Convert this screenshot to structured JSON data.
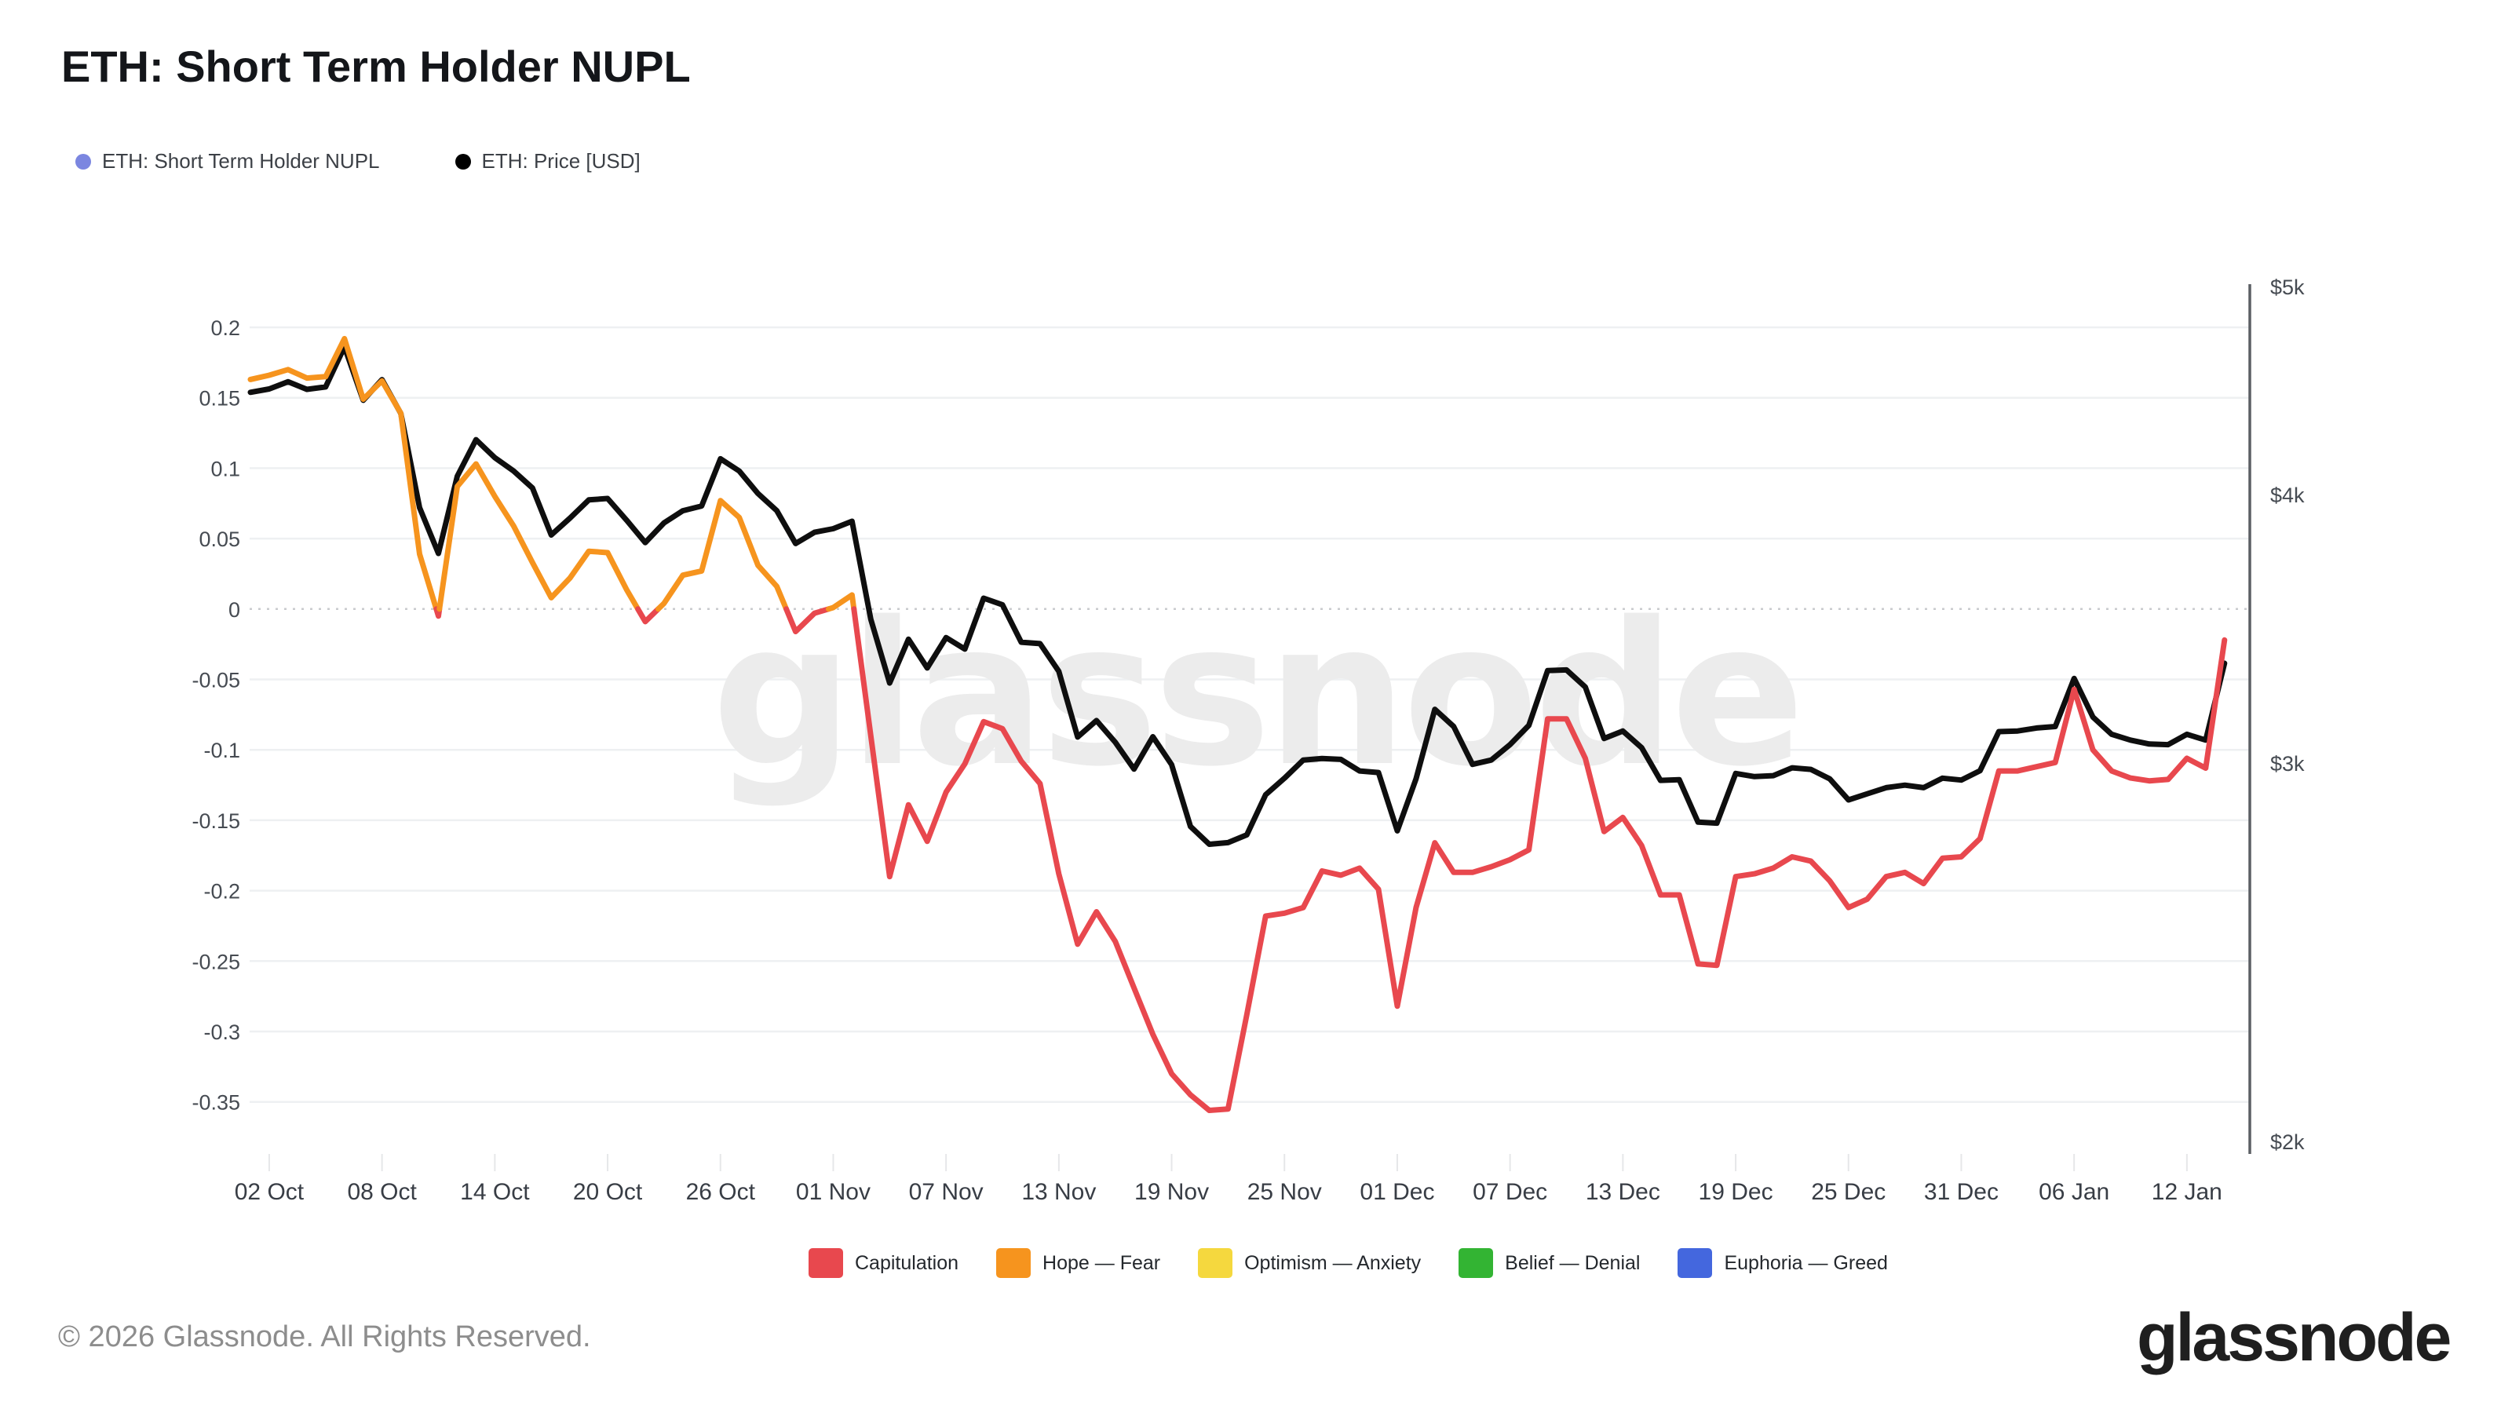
{
  "header": {
    "title": "ETH: Short Term Holder NUPL"
  },
  "top_legend": [
    {
      "label": "ETH: Short Term Holder NUPL",
      "color": "#7b86e0"
    },
    {
      "label": "ETH: Price [USD]",
      "color": "#000000"
    }
  ],
  "watermark": "glassnode",
  "bottom_legend": [
    {
      "label": "Capitulation",
      "color": "#e8484e"
    },
    {
      "label": "Hope — Fear",
      "color": "#f6941e"
    },
    {
      "label": "Optimism — Anxiety",
      "color": "#f5d83e"
    },
    {
      "label": "Belief — Denial",
      "color": "#33b433"
    },
    {
      "label": "Euphoria — Greed",
      "color": "#4467de"
    }
  ],
  "footer": {
    "copyright": "© 2026 Glassnode. All Rights Reserved.",
    "logo": "glassnode"
  },
  "chart_data": {
    "type": "line",
    "title": "ETH: Short Term Holder NUPL",
    "start_date": "2025-10-01",
    "end_date": "2026-01-14",
    "interval_days": 1,
    "grid": "horizontal",
    "x_ticks": {
      "day_index": [
        1,
        7,
        13,
        19,
        25,
        31,
        37,
        43,
        49,
        55,
        61,
        67,
        73,
        79,
        85,
        91,
        97,
        103
      ],
      "labels": [
        "02 Oct",
        "08 Oct",
        "14 Oct",
        "20 Oct",
        "26 Oct",
        "01 Nov",
        "07 Nov",
        "13 Nov",
        "19 Nov",
        "25 Nov",
        "01 Dec",
        "07 Dec",
        "13 Dec",
        "19 Dec",
        "25 Dec",
        "31 Dec",
        "06 Jan",
        "12 Jan"
      ]
    },
    "left_axis": {
      "name": "NUPL",
      "tick_values": [
        0.2,
        0.15,
        0.1,
        0.05,
        0,
        -0.05,
        -0.1,
        -0.15,
        -0.2,
        -0.25,
        -0.3,
        -0.35
      ],
      "zero_line_style": "dotted"
    },
    "right_axis": {
      "name": "ETH: Price [USD]",
      "scale": "log",
      "tick_labels": [
        "$5k",
        "$4k",
        "$3k",
        "$2k"
      ],
      "tick_values": [
        5000,
        4000,
        3000,
        2000
      ]
    },
    "series": [
      {
        "name": "ETH: Short Term Holder NUPL",
        "axis": "left",
        "color_bands": [
          {
            "range": [
              -1,
              0
            ],
            "label": "Capitulation",
            "color": "#e8484e"
          },
          {
            "range": [
              0,
              0.25
            ],
            "label": "Hope — Fear",
            "color": "#f6941e"
          },
          {
            "range": [
              0.25,
              0.5
            ],
            "label": "Optimism — Anxiety",
            "color": "#f5d83e"
          },
          {
            "range": [
              0.5,
              0.75
            ],
            "label": "Belief — Denial",
            "color": "#33b433"
          },
          {
            "range": [
              0.75,
              1
            ],
            "label": "Euphoria — Greed",
            "color": "#4467de"
          }
        ],
        "values": [
          0.163,
          0.166,
          0.17,
          0.164,
          0.165,
          0.192,
          0.149,
          0.162,
          0.139,
          0.039,
          -0.005,
          0.087,
          0.103,
          0.08,
          0.059,
          0.033,
          0.008,
          0.022,
          0.041,
          0.04,
          0.014,
          -0.009,
          0.004,
          0.024,
          0.027,
          0.077,
          0.065,
          0.031,
          0.016,
          -0.016,
          -0.003,
          0.001,
          0.01,
          -0.09,
          -0.19,
          -0.139,
          -0.165,
          -0.13,
          -0.11,
          -0.08,
          -0.085,
          -0.108,
          -0.124,
          -0.188,
          -0.238,
          -0.215,
          -0.236,
          -0.269,
          -0.302,
          -0.33,
          -0.345,
          -0.356,
          -0.355,
          -0.288,
          -0.218,
          -0.216,
          -0.212,
          -0.186,
          -0.189,
          -0.184,
          -0.199,
          -0.282,
          -0.212,
          -0.166,
          -0.187,
          -0.187,
          -0.183,
          -0.178,
          -0.171,
          -0.078,
          -0.078,
          -0.106,
          -0.158,
          -0.148,
          -0.168,
          -0.203,
          -0.203,
          -0.252,
          -0.253,
          -0.19,
          -0.188,
          -0.184,
          -0.176,
          -0.179,
          -0.193,
          -0.212,
          -0.206,
          -0.19,
          -0.187,
          -0.195,
          -0.177,
          -0.176,
          -0.163,
          -0.115,
          -0.115,
          -0.112,
          -0.109,
          -0.057,
          -0.1,
          -0.115,
          -0.12,
          -0.122,
          -0.121,
          -0.106,
          -0.113,
          -0.022
        ]
      },
      {
        "name": "ETH: Price [USD]",
        "axis": "right",
        "color": "#0e0e0e",
        "values": [
          4464,
          4480,
          4515,
          4478,
          4490,
          4687,
          4426,
          4525,
          4364,
          3945,
          3756,
          4080,
          4243,
          4162,
          4103,
          4029,
          3831,
          3901,
          3978,
          3984,
          3893,
          3800,
          3881,
          3932,
          3952,
          4157,
          4103,
          4005,
          3932,
          3796,
          3842,
          3857,
          3888,
          3500,
          3269,
          3426,
          3322,
          3432,
          3390,
          3580,
          3555,
          3415,
          3410,
          3310,
          3085,
          3140,
          3068,
          2981,
          3086,
          2995,
          2803,
          2750,
          2755,
          2778,
          2900,
          2952,
          3010,
          3015,
          3012,
          2975,
          2970,
          2790,
          2950,
          3178,
          3120,
          2996,
          3010,
          3060,
          3124,
          3313,
          3315,
          3255,
          3080,
          3105,
          3050,
          2945,
          2947,
          2816,
          2813,
          2967,
          2957,
          2960,
          2985,
          2980,
          2950,
          2884,
          2903,
          2922,
          2930,
          2922,
          2952,
          2946,
          2976,
          3103,
          3105,
          3115,
          3120,
          3285,
          3152,
          3094,
          3075,
          3062,
          3060,
          3094,
          3075,
          3339
        ]
      }
    ],
    "style": {
      "grid_color": "#eef0f2",
      "zero_line_color": "#c9cbce",
      "axis_line_color": "#5b5f64",
      "tick_label_color": "#464b52",
      "x_label_color": "#383d45",
      "watermark_color": "#ececec",
      "line_width": 7
    }
  }
}
